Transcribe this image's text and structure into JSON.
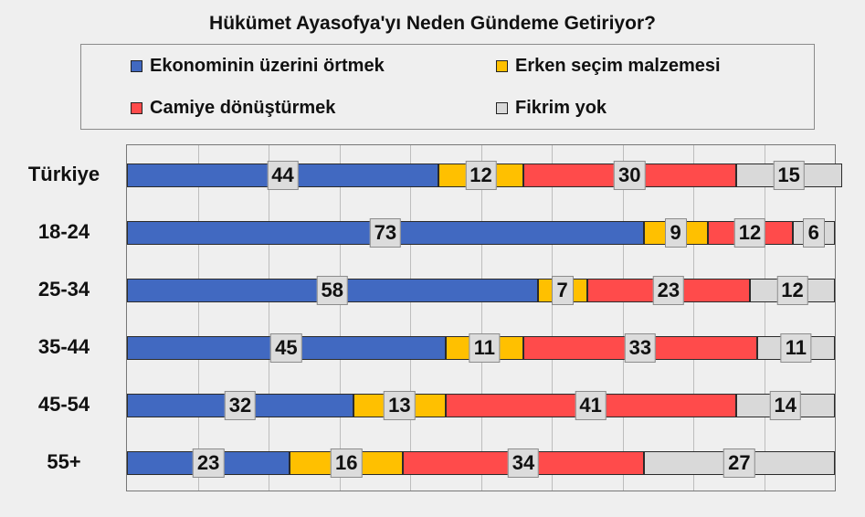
{
  "chart_data": {
    "type": "bar",
    "orientation": "horizontal",
    "stacked": true,
    "title": "Hükümet Ayasofya'yı Neden Gündeme Getiriyor?",
    "categories": [
      "Türkiye",
      "18-24",
      "25-34",
      "35-44",
      "45-54",
      "55+"
    ],
    "series": [
      {
        "name": "Ekonominin üzerini örtmek",
        "color": "#4169c1",
        "values": [
          44,
          73,
          58,
          45,
          32,
          23
        ]
      },
      {
        "name": "Erken seçim malzemesi",
        "color": "#ffc000",
        "values": [
          12,
          9,
          7,
          11,
          13,
          16
        ]
      },
      {
        "name": "Camiye dönüştürmek",
        "color": "#ff4b4b",
        "values": [
          30,
          12,
          23,
          33,
          41,
          34
        ]
      },
      {
        "name": "Fikrim yok",
        "color": "#d9d9d9",
        "values": [
          15,
          6,
          12,
          11,
          14,
          27
        ]
      }
    ],
    "xlim": [
      0,
      100
    ],
    "grid": true,
    "legend_position": "top"
  }
}
